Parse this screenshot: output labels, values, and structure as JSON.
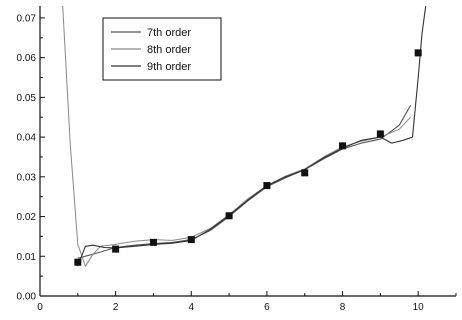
{
  "chart_data": {
    "type": "line",
    "title": "",
    "xlabel": "",
    "ylabel": "",
    "xlim": [
      0,
      11
    ],
    "ylim": [
      0,
      0.073
    ],
    "x_ticks": [
      0,
      2,
      4,
      6,
      8,
      10
    ],
    "x_tick_labels": [
      "0",
      "2",
      "4",
      "6",
      "8",
      "10"
    ],
    "y_ticks": [
      0,
      0.01,
      0.02,
      0.03,
      0.04,
      0.05,
      0.06,
      0.07
    ],
    "y_tick_labels": [
      "0.00",
      "0.01",
      "0.02",
      "0.03",
      "0.04",
      "0.05",
      "0.06",
      "0.07"
    ],
    "grid": false,
    "legend_position": "top-left",
    "markers": {
      "x": [
        1,
        2,
        3,
        4,
        5,
        6,
        7,
        8,
        9,
        10
      ],
      "y": [
        0.0085,
        0.0118,
        0.0135,
        0.0142,
        0.0202,
        0.0278,
        0.031,
        0.0378,
        0.0408,
        0.0612
      ]
    },
    "series": [
      {
        "name": "7th order",
        "color": "#555555",
        "x": [
          1.0,
          1.5,
          2,
          2.5,
          3,
          3.5,
          4,
          4.5,
          5,
          5.5,
          6,
          6.5,
          7,
          7.5,
          8,
          8.5,
          9,
          9.5,
          9.8
        ],
        "y": [
          0.0095,
          0.0108,
          0.0122,
          0.0128,
          0.0132,
          0.0135,
          0.0142,
          0.0165,
          0.02,
          0.024,
          0.0275,
          0.0298,
          0.0318,
          0.0345,
          0.037,
          0.0385,
          0.0395,
          0.043,
          0.048
        ]
      },
      {
        "name": "8th order",
        "color": "#888888",
        "x": [
          0.6,
          0.8,
          1.0,
          1.2,
          1.4,
          1.6,
          2,
          2.5,
          3,
          3.5,
          4,
          4.5,
          5,
          5.5,
          6,
          6.5,
          7,
          7.5,
          8,
          8.5,
          9,
          9.5,
          9.8
        ],
        "y": [
          0.073,
          0.038,
          0.013,
          0.0075,
          0.0105,
          0.0125,
          0.013,
          0.0138,
          0.0142,
          0.014,
          0.0148,
          0.017,
          0.0205,
          0.0245,
          0.0278,
          0.0302,
          0.032,
          0.035,
          0.0375,
          0.039,
          0.04,
          0.042,
          0.045
        ]
      },
      {
        "name": "9th order",
        "color": "#333333",
        "x": [
          1.0,
          1.1,
          1.2,
          1.4,
          1.7,
          2,
          2.5,
          3,
          3.5,
          4,
          4.5,
          5,
          5.5,
          6,
          6.5,
          7,
          7.5,
          8,
          8.5,
          9,
          9.3,
          9.6,
          9.85,
          10.0,
          10.1,
          10.2
        ],
        "y": [
          0.0075,
          0.01,
          0.0125,
          0.0128,
          0.0122,
          0.0121,
          0.0125,
          0.013,
          0.0133,
          0.014,
          0.0168,
          0.0203,
          0.0242,
          0.0278,
          0.03,
          0.0318,
          0.0348,
          0.0372,
          0.0392,
          0.04,
          0.0385,
          0.0392,
          0.04,
          0.055,
          0.066,
          0.073
        ]
      }
    ]
  }
}
